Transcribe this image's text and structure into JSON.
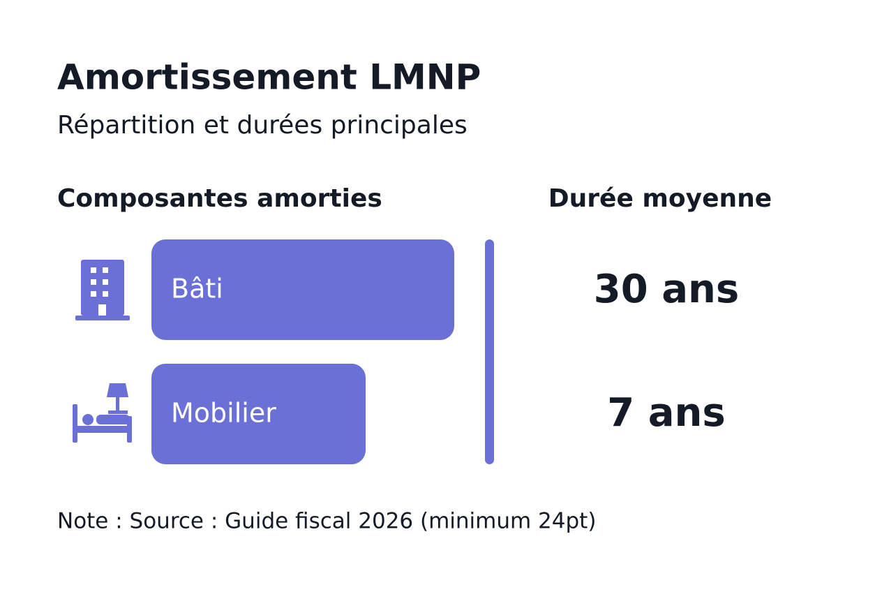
{
  "header": {
    "title": "Amortissement LMNP",
    "subtitle": "Répartition et durées principales"
  },
  "columns": {
    "left": "Composantes amorties",
    "right": "Durée moyenne"
  },
  "rows": [
    {
      "label": "Bâti",
      "duration": "30 ans"
    },
    {
      "label": "Mobilier",
      "duration": "7 ans"
    }
  ],
  "note": "Note : Source : Guide fiscal 2026 (minimum 24pt)"
}
